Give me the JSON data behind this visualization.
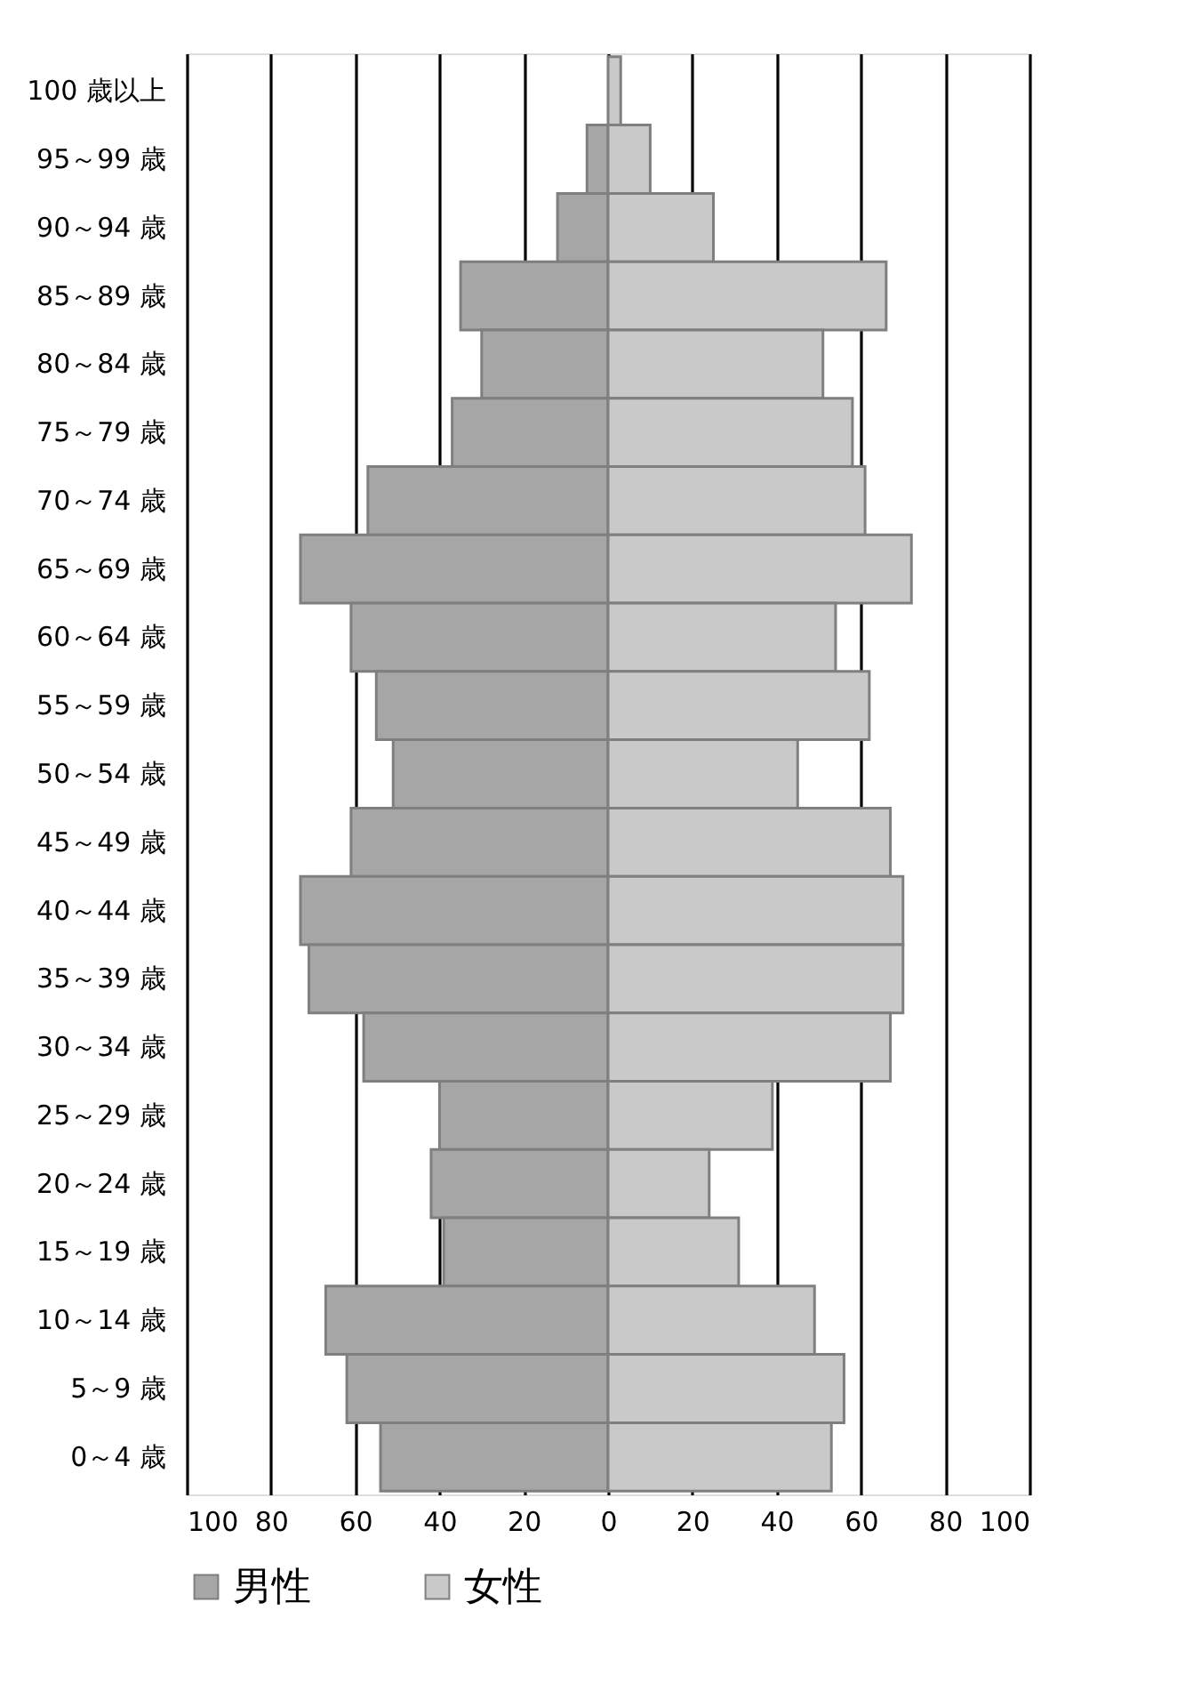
{
  "chart_data": {
    "type": "bar",
    "orientation": "horizontal",
    "categories": [
      "100 歳以上",
      "95～99 歳",
      "90～94 歳",
      "85～89 歳",
      "80～84 歳",
      "75～79 歳",
      "70～74 歳",
      "65～69 歳",
      "60～64 歳",
      "55～59 歳",
      "50～54 歳",
      "45～49 歳",
      "40～44 歳",
      "35～39 歳",
      "30～34 歳",
      "25～29 歳",
      "20～24 歳",
      "15～19 歳",
      "10～14 歳",
      "5～9 歳",
      "0～4 歳"
    ],
    "series": [
      {
        "name": "男性",
        "color": "#a6a6a6",
        "values": [
          null,
          -5,
          -12,
          -35,
          -30,
          -37,
          -57,
          -73,
          -61,
          -55,
          -51,
          -61,
          -73,
          -71,
          -58,
          -40,
          -42,
          -39,
          -67,
          -62,
          -54
        ]
      },
      {
        "name": "女性",
        "color": "#c9c9c9",
        "values": [
          3,
          10,
          25,
          66,
          51,
          58,
          61,
          72,
          54,
          62,
          45,
          67,
          70,
          70,
          67,
          39,
          24,
          31,
          49,
          56,
          53
        ]
      }
    ],
    "xlim": [
      -100,
      100
    ],
    "xticks": [
      {
        "value": -100,
        "label": "100"
      },
      {
        "value": -80,
        "label": "80"
      },
      {
        "value": -60,
        "label": "60"
      },
      {
        "value": -40,
        "label": "40"
      },
      {
        "value": -20,
        "label": "20"
      },
      0,
      20,
      40,
      60,
      80,
      100
    ],
    "stacked": true,
    "grid": "x",
    "legend": "bottom"
  }
}
